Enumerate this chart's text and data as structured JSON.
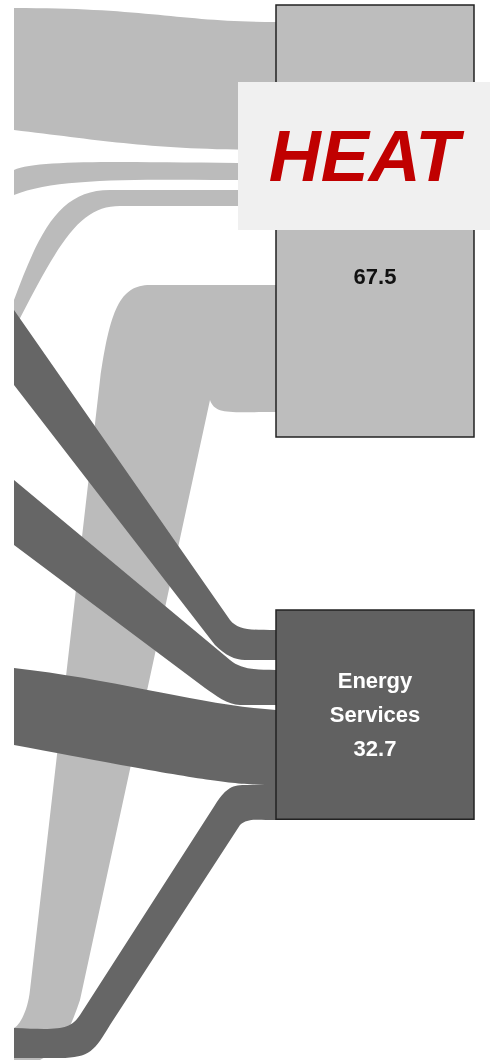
{
  "chart_data": {
    "type": "other",
    "categories": [
      null,
      "Energy Services"
    ],
    "values": [
      67.5,
      32.7
    ],
    "colors": [
      "#bdbdbd",
      "#616161"
    ],
    "annotations": [
      "HEAT"
    ],
    "data_labels": true
  }
}
